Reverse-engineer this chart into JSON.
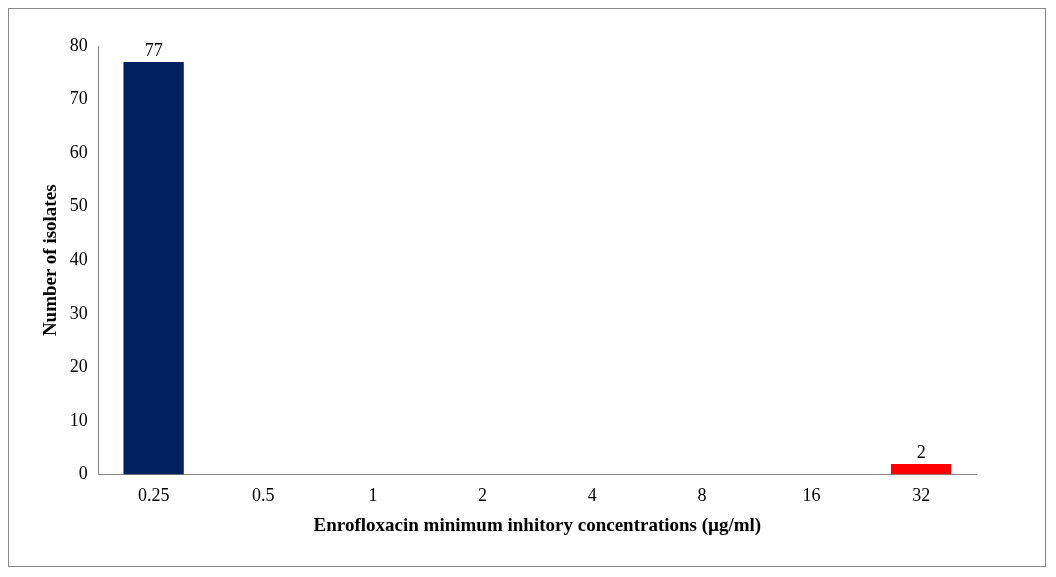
{
  "chart_data": {
    "type": "bar",
    "xlabel": "Enrofloxacin minimum inhitory concentrations (µg/ml)",
    "ylabel": "Number of isolates",
    "categories": [
      "0.25",
      "0.5",
      "1",
      "2",
      "4",
      "8",
      "16",
      "32"
    ],
    "values": [
      77,
      0,
      0,
      0,
      0,
      0,
      0,
      2
    ],
    "colors": [
      "#002060",
      "#002060",
      "#002060",
      "#002060",
      "#002060",
      "#002060",
      "#002060",
      "#ff0000"
    ],
    "value_labels": [
      "77",
      null,
      null,
      null,
      null,
      null,
      null,
      "2"
    ],
    "ylim": [
      0,
      80
    ],
    "yticks": [
      0,
      10,
      20,
      30,
      40,
      50,
      60,
      70,
      80
    ],
    "grid": false,
    "legend": false
  }
}
